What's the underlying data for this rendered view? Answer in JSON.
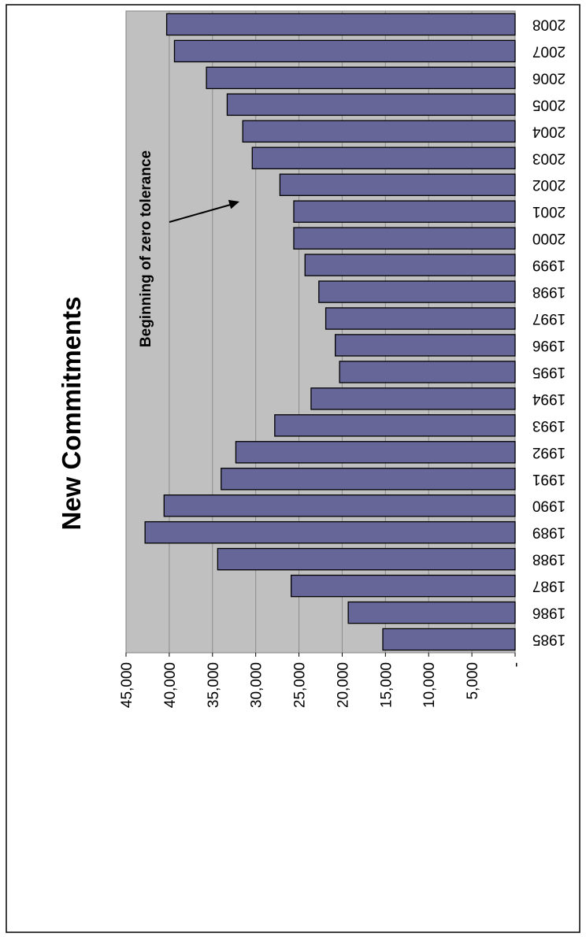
{
  "chart_data": {
    "type": "bar",
    "orientation": "horizontal",
    "title": "New Commitments",
    "categories": [
      "1985",
      "1986",
      "1987",
      "1988",
      "1989",
      "1990",
      "1991",
      "1992",
      "1993",
      "1994",
      "1995",
      "1996",
      "1997",
      "1998",
      "1999",
      "2000",
      "2001",
      "2002",
      "2003",
      "2004",
      "2005",
      "2006",
      "2007",
      "2008"
    ],
    "series": [
      {
        "values": [
          15300,
          19300,
          25900,
          34400,
          42800,
          40600,
          34000,
          32300,
          27800,
          23600,
          20300,
          20800,
          21900,
          22700,
          24300,
          25600,
          25600,
          27200,
          30400,
          31500,
          33300,
          35700,
          39400,
          40300
        ],
        "color": "#666699"
      }
    ],
    "value_ticks": [
      "-",
      "5,000",
      "10,000",
      "15,000",
      "20,000",
      "25,000",
      "30,000",
      "35,000",
      "40,000",
      "45,000"
    ],
    "ylim": [
      0,
      45000
    ],
    "grid": true,
    "plot_background": "#c0c0c0",
    "annotation": {
      "text": "Beginning of zero tolerance",
      "category": "2003"
    }
  }
}
